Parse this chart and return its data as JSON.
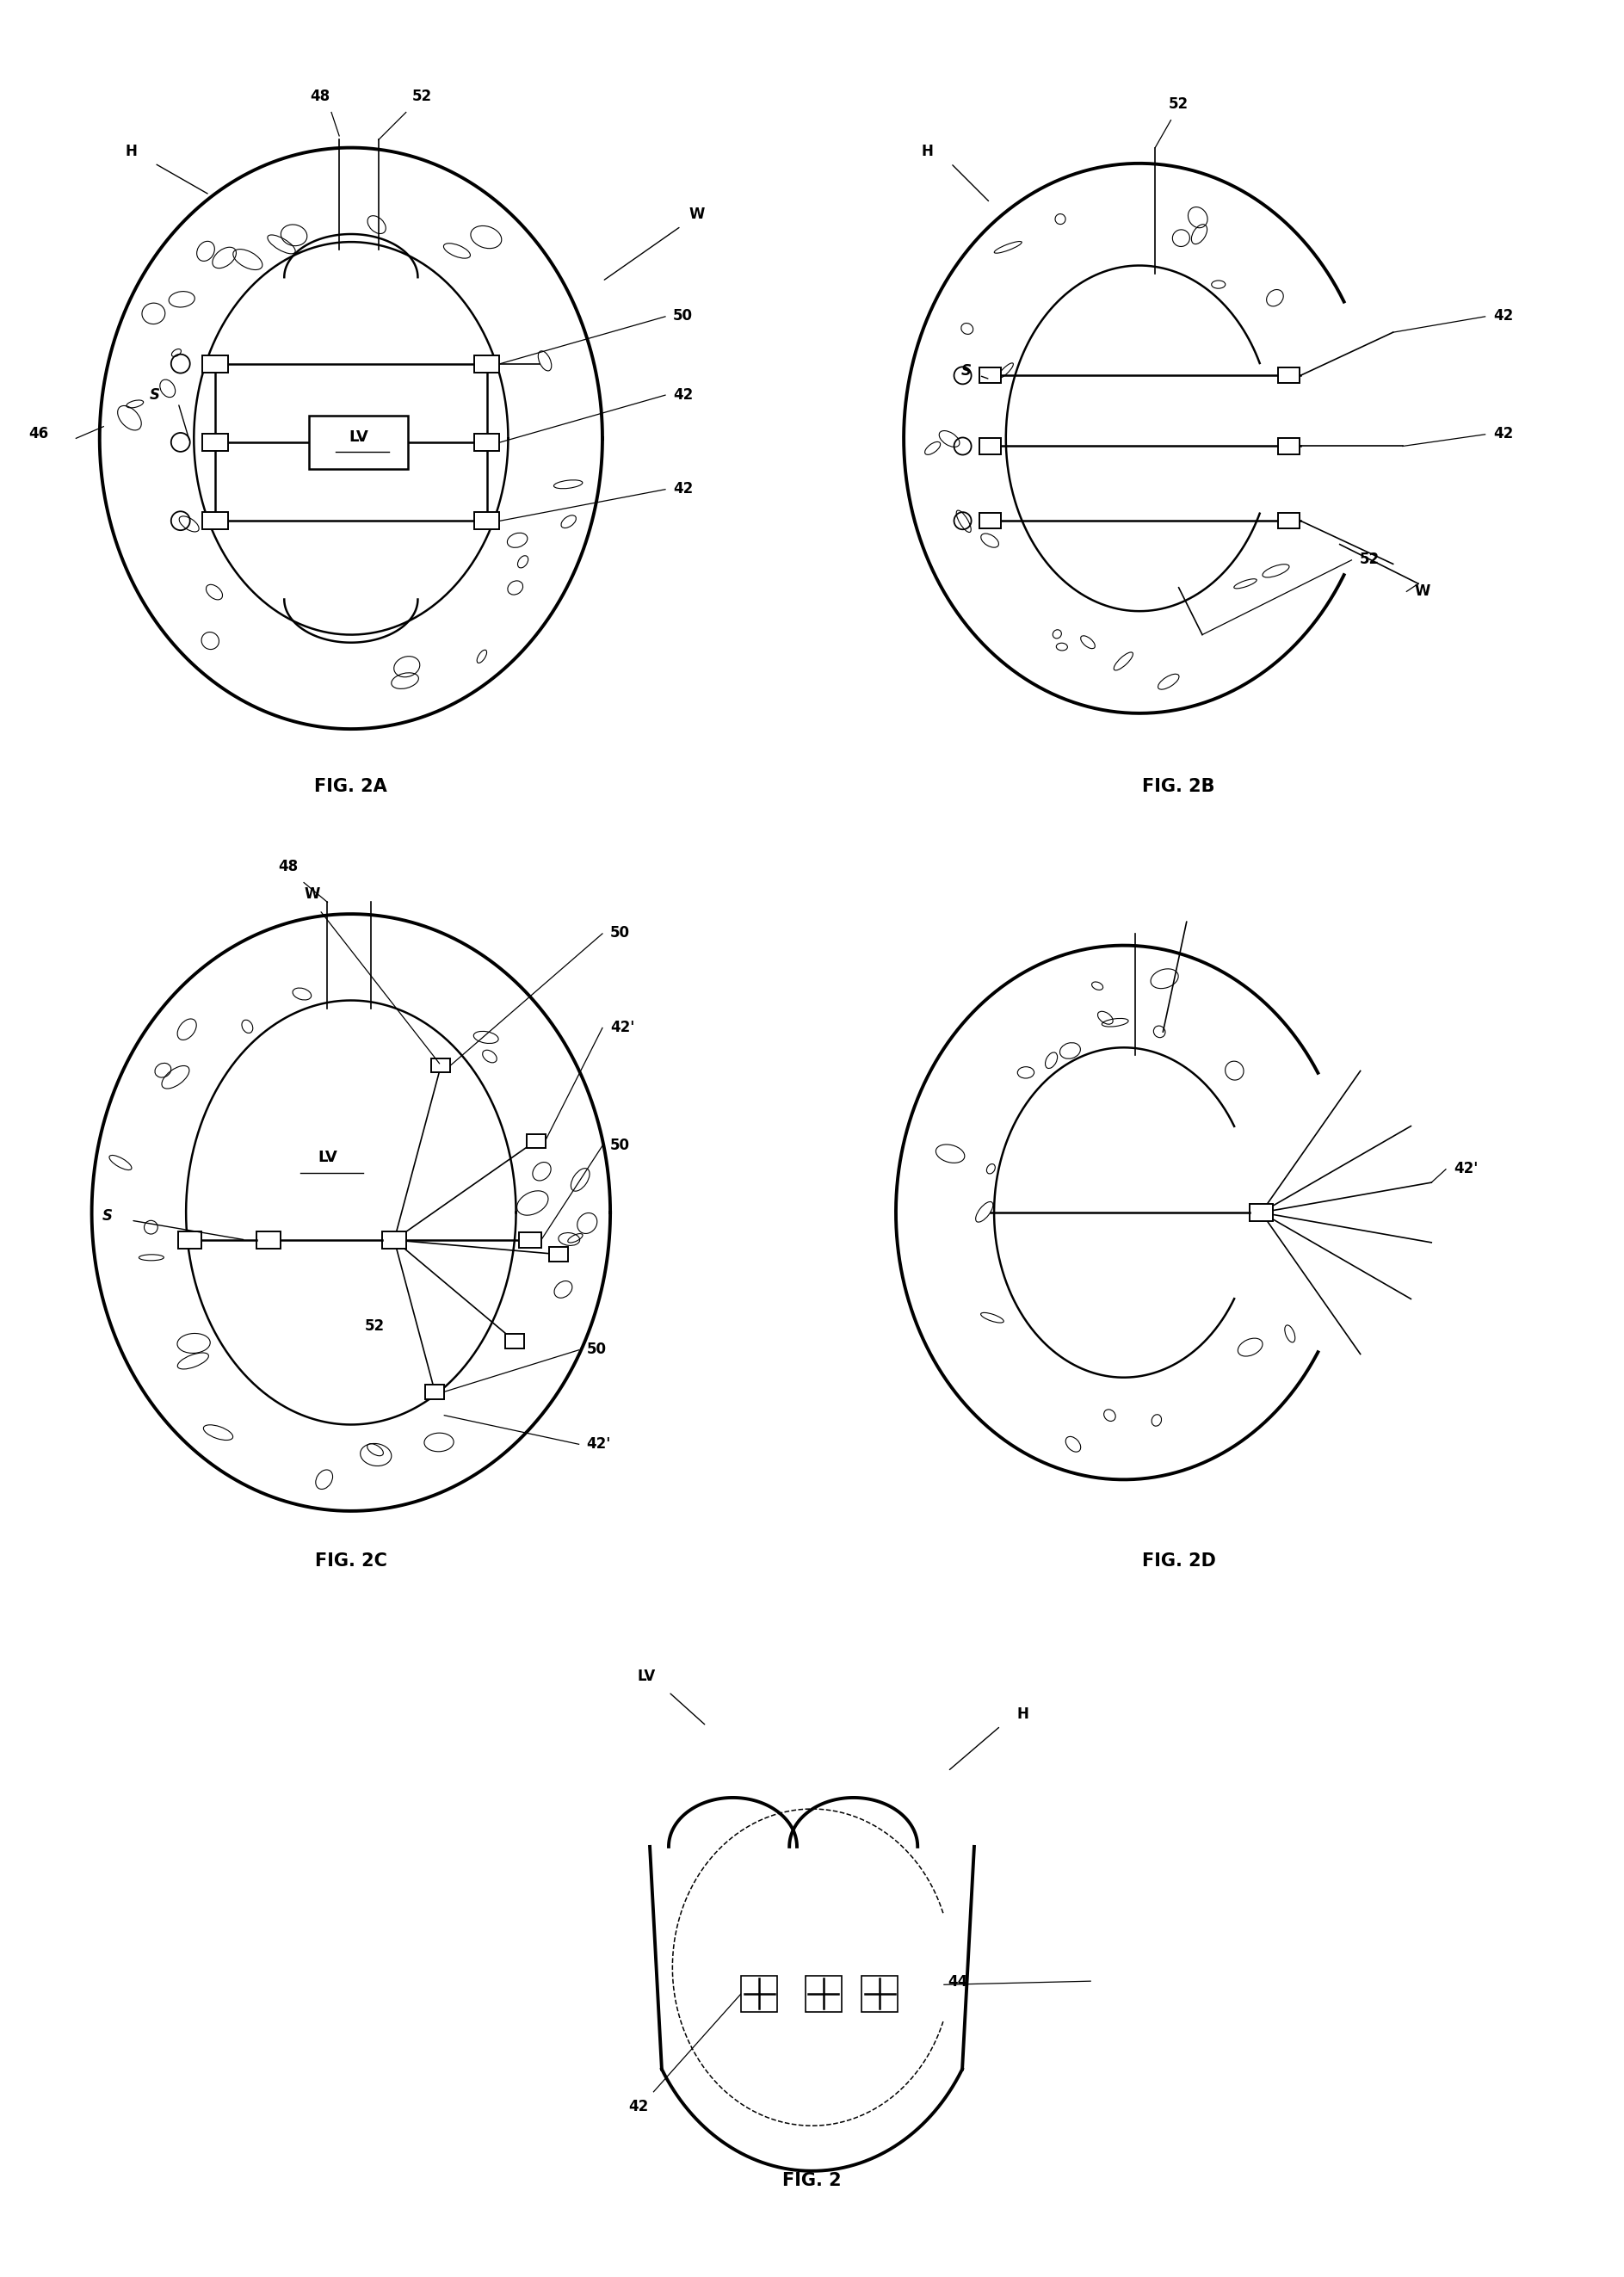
{
  "background_color": "#ffffff",
  "line_color": "#000000",
  "fig_labels": [
    "FIG. 2A",
    "FIG. 2B",
    "FIG. 2C",
    "FIG. 2D",
    "FIG. 2"
  ],
  "label_fontsize": 15,
  "annotation_fontsize": 12,
  "lv_fontsize": 13,
  "lw_thick": 2.8,
  "lw_main": 1.8,
  "lw_thin": 1.2
}
